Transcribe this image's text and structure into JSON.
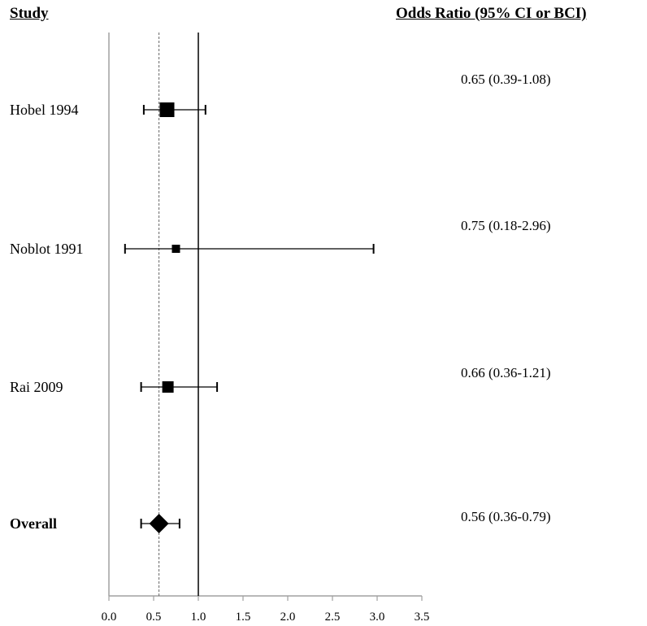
{
  "headers": {
    "study": "Study",
    "odds_ratio": "Odds Ratio (95% CI or BCI)"
  },
  "chart_data": {
    "type": "forest",
    "xlim": [
      0.0,
      3.5
    ],
    "x_ticks": [
      "0.0",
      "0.5",
      "1.0",
      "1.5",
      "2.0",
      "2.5",
      "3.0",
      "3.5"
    ],
    "null_line": 1.0,
    "pooled_line": 0.56,
    "studies": [
      {
        "name": "Hobel  1994",
        "or": 0.65,
        "lo": 0.39,
        "hi": 1.08,
        "text": "0.65 (0.39-1.08)",
        "marker": "square",
        "size": "large"
      },
      {
        "name": "Noblot 1991",
        "or": 0.75,
        "lo": 0.18,
        "hi": 2.96,
        "text": "0.75 (0.18-2.96)",
        "marker": "square",
        "size": "small"
      },
      {
        "name": "Rai 2009",
        "or": 0.66,
        "lo": 0.36,
        "hi": 1.21,
        "text": "0.66 (0.36-1.21)",
        "marker": "square",
        "size": "medium"
      },
      {
        "name": "Overall",
        "or": 0.56,
        "lo": 0.36,
        "hi": 0.79,
        "text": "0.56 (0.36-0.79)",
        "marker": "diamond",
        "size": "medium",
        "bold": true
      }
    ]
  }
}
